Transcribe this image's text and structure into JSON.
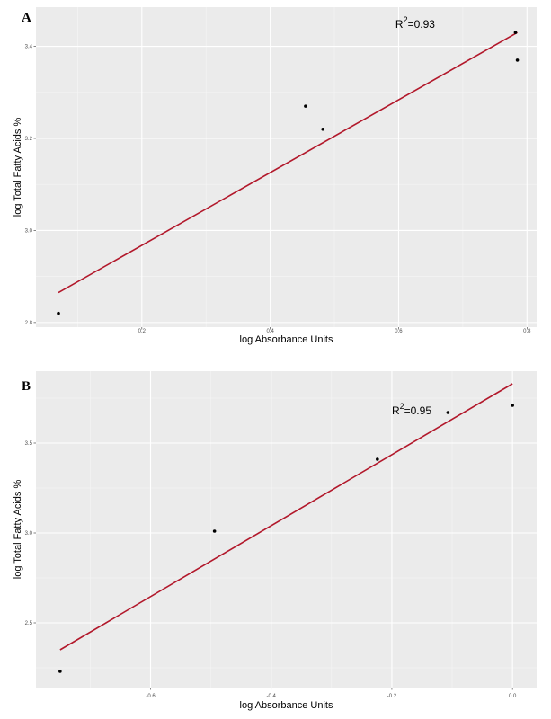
{
  "chart_data": [
    {
      "type": "scatter",
      "panel_label": "A",
      "xlabel": "log Absorbance Units",
      "ylabel": "log Total Fatty Acids %",
      "xlim": [
        0.035,
        0.815
      ],
      "ylim": [
        2.79,
        3.485
      ],
      "x_ticks": [
        0.2,
        0.4,
        0.6,
        0.8
      ],
      "x_tick_labels": [
        "0.2",
        "0.4",
        "0.6",
        "0.8"
      ],
      "y_ticks": [
        2.8,
        3.0,
        3.2,
        3.4
      ],
      "y_tick_labels": [
        "2.8",
        "3.0",
        "3.2",
        "3.4"
      ],
      "points": {
        "x": [
          0.07,
          0.455,
          0.482,
          0.782,
          0.785
        ],
        "y": [
          2.82,
          3.27,
          3.22,
          3.43,
          3.37
        ]
      },
      "fit_line": {
        "x": [
          0.07,
          0.785
        ],
        "y": [
          2.865,
          3.43
        ]
      },
      "annotation": {
        "base": "R",
        "sup": "2",
        "rest": "=0.93",
        "x": 0.595,
        "y": 3.44
      },
      "grid": true
    },
    {
      "type": "scatter",
      "panel_label": "B",
      "xlabel": "log Absorbance Units",
      "ylabel": "log Total Fatty Acids %",
      "xlim": [
        -0.79,
        0.04
      ],
      "ylim": [
        2.14,
        3.9
      ],
      "x_ticks": [
        -0.6,
        -0.4,
        -0.2,
        0.0
      ],
      "x_tick_labels": [
        "-0.6",
        "-0.4",
        "-0.2",
        "0.0"
      ],
      "y_ticks": [
        2.5,
        3.0,
        3.5
      ],
      "y_tick_labels": [
        "2.5",
        "3.0",
        "3.5"
      ],
      "points": {
        "x": [
          -0.75,
          -0.494,
          -0.224,
          -0.107,
          0.0
        ],
        "y": [
          2.23,
          3.01,
          3.41,
          3.67,
          3.71
        ]
      },
      "fit_line": {
        "x": [
          -0.75,
          0.0
        ],
        "y": [
          2.35,
          3.83
        ]
      },
      "annotation": {
        "base": "R",
        "sup": "2",
        "rest": "=0.95",
        "x": -0.2,
        "y": 3.66
      },
      "grid": true
    }
  ],
  "colors": {
    "panel_bg": "#ebebeb",
    "grid_major": "#ffffff",
    "fit_line": "#b2182b",
    "point": "#000000"
  }
}
